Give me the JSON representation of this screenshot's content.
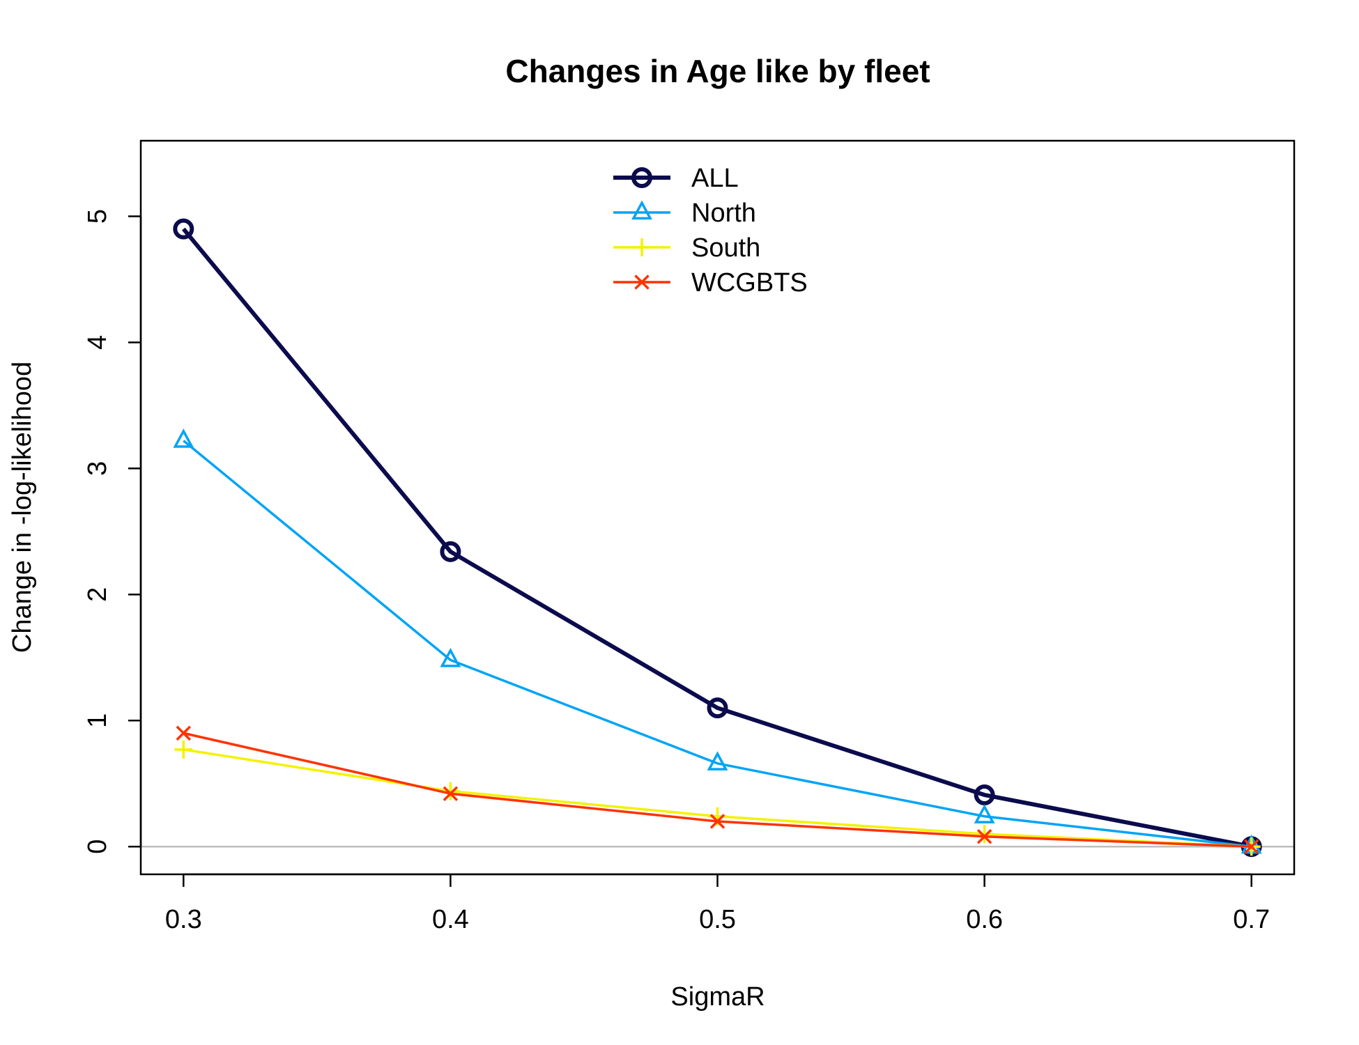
{
  "chart_data": {
    "type": "line",
    "title": "Changes in Age like by fleet",
    "xlabel": "SigmaR",
    "ylabel": "Change in -log-likelihood",
    "x": [
      0.3,
      0.4,
      0.5,
      0.6,
      0.7
    ],
    "xlim": [
      0.284,
      0.716
    ],
    "ylim": [
      -0.22,
      5.6
    ],
    "x_ticks": [
      "0.3",
      "0.4",
      "0.5",
      "0.6",
      "0.7"
    ],
    "y_ticks": [
      "0",
      "1",
      "2",
      "3",
      "4",
      "5"
    ],
    "reference_line": 0,
    "legend_position": "top-center",
    "grid": false,
    "series": [
      {
        "name": "ALL",
        "values": [
          4.9,
          2.34,
          1.1,
          0.41,
          0.0
        ],
        "color": "#0b0b4d",
        "marker": "circle"
      },
      {
        "name": "North",
        "values": [
          3.22,
          1.48,
          0.66,
          0.24,
          0.0
        ],
        "color": "#00a4f5",
        "marker": "triangle"
      },
      {
        "name": "South",
        "values": [
          0.77,
          0.44,
          0.24,
          0.1,
          0.0
        ],
        "color": "#f2f200",
        "marker": "plus"
      },
      {
        "name": "WCGBTS",
        "values": [
          0.9,
          0.42,
          0.2,
          0.08,
          0.0
        ],
        "color": "#ff3300",
        "marker": "cross"
      }
    ]
  }
}
